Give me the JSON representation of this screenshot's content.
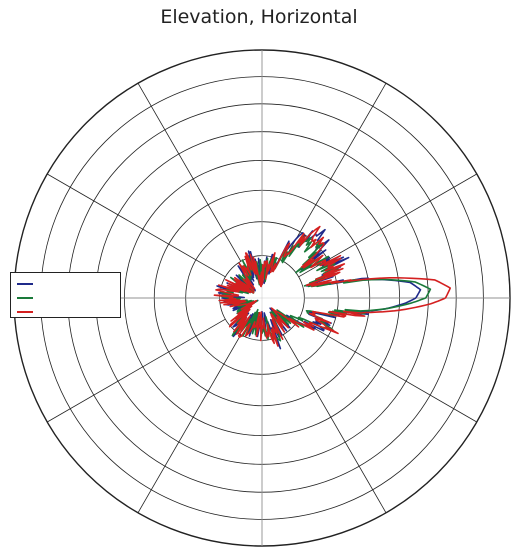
{
  "chart_data": {
    "type": "polar-line",
    "title": "Elevation, Horizontal",
    "radial_rings": 8,
    "spokes_deg": 30,
    "legend_position": "left",
    "series": [
      {
        "color": "#1f2a8a",
        "points": [
          [
            0,
            0.62
          ],
          [
            3,
            0.64
          ],
          [
            6,
            0.6
          ],
          [
            9,
            0.48
          ],
          [
            12,
            0.3
          ],
          [
            15,
            0.22
          ],
          [
            20,
            0.3
          ],
          [
            25,
            0.34
          ],
          [
            30,
            0.3
          ],
          [
            36,
            0.25
          ],
          [
            42,
            0.32
          ],
          [
            50,
            0.35
          ],
          [
            56,
            0.28
          ],
          [
            62,
            0.22
          ],
          [
            70,
            0.15
          ],
          [
            78,
            0.12
          ],
          [
            86,
            0.11
          ],
          [
            94,
            0.1
          ],
          [
            100,
            0.12
          ],
          [
            106,
            0.14
          ],
          [
            112,
            0.15
          ],
          [
            120,
            0.12
          ],
          [
            130,
            0.1
          ],
          [
            140,
            0.08
          ],
          [
            150,
            0.1
          ],
          [
            160,
            0.12
          ],
          [
            170,
            0.14
          ],
          [
            180,
            0.12
          ],
          [
            190,
            0.1
          ],
          [
            200,
            0.08
          ],
          [
            210,
            0.06
          ],
          [
            220,
            0.1
          ],
          [
            230,
            0.15
          ],
          [
            240,
            0.12
          ],
          [
            250,
            0.1
          ],
          [
            260,
            0.12
          ],
          [
            270,
            0.1
          ],
          [
            280,
            0.12
          ],
          [
            290,
            0.16
          ],
          [
            300,
            0.12
          ],
          [
            310,
            0.1
          ],
          [
            320,
            0.12
          ],
          [
            330,
            0.2
          ],
          [
            336,
            0.3
          ],
          [
            342,
            0.22
          ],
          [
            348,
            0.3
          ],
          [
            352,
            0.4
          ],
          [
            355,
            0.5
          ],
          [
            358,
            0.58
          ],
          [
            360,
            0.62
          ]
        ]
      },
      {
        "color": "#1a7a3a",
        "points": [
          [
            0,
            0.66
          ],
          [
            3,
            0.68
          ],
          [
            6,
            0.62
          ],
          [
            9,
            0.48
          ],
          [
            12,
            0.28
          ],
          [
            15,
            0.2
          ],
          [
            20,
            0.28
          ],
          [
            25,
            0.32
          ],
          [
            30,
            0.28
          ],
          [
            36,
            0.22
          ],
          [
            42,
            0.28
          ],
          [
            50,
            0.32
          ],
          [
            56,
            0.26
          ],
          [
            62,
            0.2
          ],
          [
            70,
            0.14
          ],
          [
            78,
            0.12
          ],
          [
            86,
            0.1
          ],
          [
            94,
            0.1
          ],
          [
            100,
            0.11
          ],
          [
            106,
            0.13
          ],
          [
            112,
            0.14
          ],
          [
            120,
            0.11
          ],
          [
            130,
            0.1
          ],
          [
            140,
            0.09
          ],
          [
            150,
            0.1
          ],
          [
            160,
            0.11
          ],
          [
            170,
            0.13
          ],
          [
            180,
            0.12
          ],
          [
            190,
            0.1
          ],
          [
            200,
            0.09
          ],
          [
            210,
            0.07
          ],
          [
            220,
            0.1
          ],
          [
            230,
            0.14
          ],
          [
            240,
            0.12
          ],
          [
            250,
            0.1
          ],
          [
            260,
            0.12
          ],
          [
            270,
            0.1
          ],
          [
            280,
            0.12
          ],
          [
            290,
            0.15
          ],
          [
            300,
            0.12
          ],
          [
            310,
            0.1
          ],
          [
            320,
            0.12
          ],
          [
            330,
            0.19
          ],
          [
            336,
            0.28
          ],
          [
            342,
            0.21
          ],
          [
            348,
            0.29
          ],
          [
            352,
            0.38
          ],
          [
            355,
            0.5
          ],
          [
            358,
            0.6
          ],
          [
            360,
            0.66
          ]
        ]
      },
      {
        "color": "#d42020",
        "points": [
          [
            0,
            0.74
          ],
          [
            3,
            0.76
          ],
          [
            6,
            0.7
          ],
          [
            9,
            0.52
          ],
          [
            12,
            0.3
          ],
          [
            15,
            0.22
          ],
          [
            20,
            0.3
          ],
          [
            25,
            0.34
          ],
          [
            30,
            0.3
          ],
          [
            36,
            0.24
          ],
          [
            42,
            0.3
          ],
          [
            50,
            0.33
          ],
          [
            56,
            0.27
          ],
          [
            62,
            0.21
          ],
          [
            70,
            0.15
          ],
          [
            78,
            0.12
          ],
          [
            86,
            0.11
          ],
          [
            94,
            0.1
          ],
          [
            100,
            0.12
          ],
          [
            106,
            0.14
          ],
          [
            112,
            0.15
          ],
          [
            120,
            0.12
          ],
          [
            130,
            0.1
          ],
          [
            140,
            0.09
          ],
          [
            150,
            0.1
          ],
          [
            160,
            0.12
          ],
          [
            170,
            0.14
          ],
          [
            180,
            0.13
          ],
          [
            190,
            0.11
          ],
          [
            200,
            0.09
          ],
          [
            210,
            0.07
          ],
          [
            220,
            0.11
          ],
          [
            230,
            0.15
          ],
          [
            240,
            0.13
          ],
          [
            250,
            0.1
          ],
          [
            260,
            0.12
          ],
          [
            270,
            0.11
          ],
          [
            280,
            0.12
          ],
          [
            290,
            0.16
          ],
          [
            300,
            0.13
          ],
          [
            310,
            0.11
          ],
          [
            320,
            0.12
          ],
          [
            330,
            0.2
          ],
          [
            336,
            0.3
          ],
          [
            342,
            0.22
          ],
          [
            348,
            0.31
          ],
          [
            352,
            0.42
          ],
          [
            355,
            0.56
          ],
          [
            358,
            0.68
          ],
          [
            360,
            0.74
          ]
        ]
      }
    ]
  }
}
